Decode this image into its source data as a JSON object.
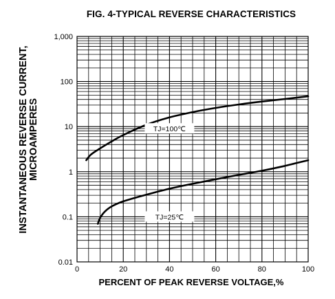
{
  "chart_data": {
    "type": "line",
    "title": "FIG. 4-TYPICAL REVERSE CHARACTERISTICS",
    "xlabel": "PERCENT OF PEAK REVERSE VOLTAGE,%",
    "ylabel_line1": "INSTANTANEOUS REVERSE CURRENT,",
    "ylabel_line2": "MICROAMPERES",
    "xlim": [
      0,
      100
    ],
    "ylim": [
      0.01,
      1000
    ],
    "yscale": "log",
    "grid": true,
    "x_ticks": [
      "0",
      "20",
      "40",
      "60",
      "80",
      "100"
    ],
    "y_ticks": [
      "0.01",
      "0.1",
      "1",
      "10",
      "100",
      "1,000"
    ],
    "series": [
      {
        "name": "TJ=100℃",
        "x": [
          4,
          6,
          10,
          15,
          20,
          30,
          40,
          50,
          60,
          70,
          80,
          90,
          100
        ],
        "y": [
          1.8,
          2.4,
          3.3,
          4.7,
          6.5,
          11,
          16,
          21,
          26,
          31,
          36,
          41,
          47
        ]
      },
      {
        "name": "TJ=25℃",
        "x": [
          9,
          10,
          12,
          15,
          20,
          30,
          40,
          50,
          60,
          70,
          80,
          90,
          100
        ],
        "y": [
          0.07,
          0.095,
          0.13,
          0.17,
          0.22,
          0.31,
          0.42,
          0.54,
          0.68,
          0.85,
          1.05,
          1.35,
          1.8
        ]
      }
    ]
  }
}
